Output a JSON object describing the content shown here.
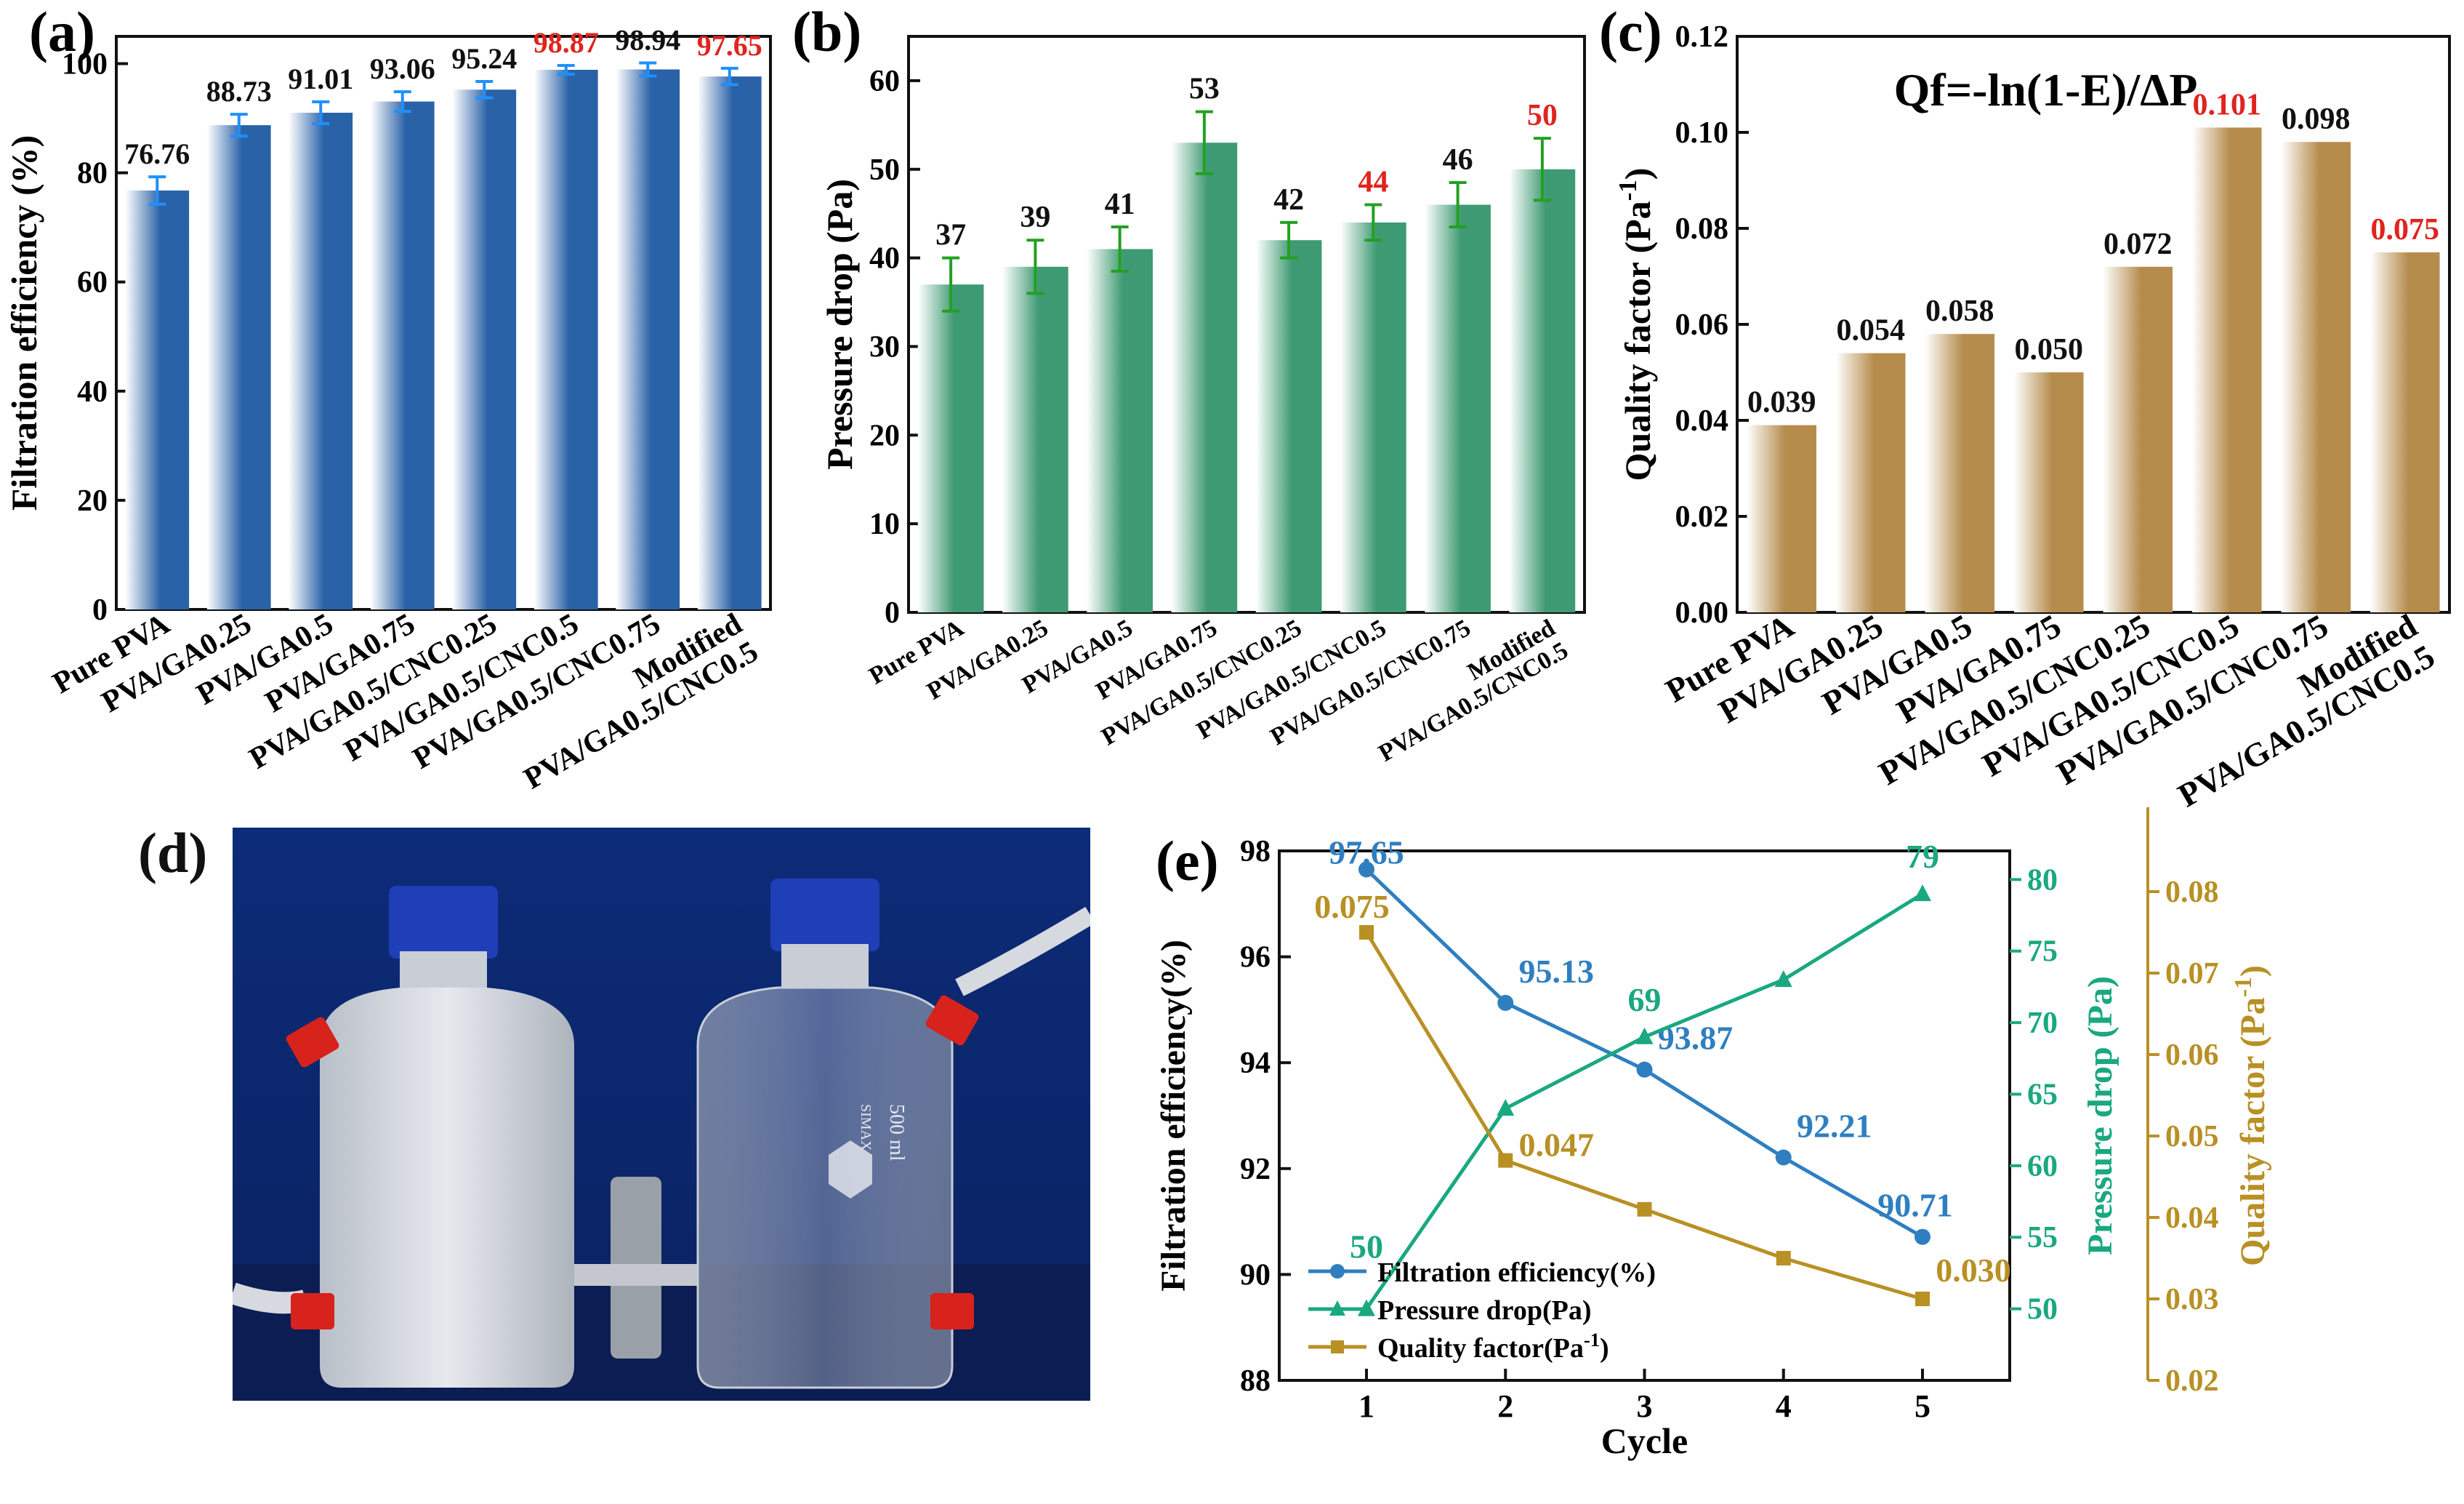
{
  "colors": {
    "blue": "#2a62a8",
    "green": "#3e9a72",
    "gold": "#b58c4c",
    "red": "#e0241e",
    "err_blue": "#1e90ff",
    "err_green": "#22a022",
    "line_blue": "#2f7fc0",
    "line_green": "#1aa880",
    "line_gold": "#b89024"
  },
  "panel_labels": {
    "a": "(a)",
    "b": "(b)",
    "c": "(c)",
    "d": "(d)",
    "e": "(e)"
  },
  "chart_data": [
    {
      "id": "a",
      "type": "bar",
      "ylabel": "Filtration efficiency (%)",
      "ylim": [
        0,
        105
      ],
      "yticks": [
        0,
        20,
        40,
        60,
        80,
        100
      ],
      "categories": [
        "Pure PVA",
        "PVA/GA0.25",
        "PVA/GA0.5",
        "PVA/GA0.75",
        "PVA/GA0.5/CNC0.25",
        "PVA/GA0.5/CNC0.5",
        "PVA/GA0.5/CNC0.75",
        "Modified\nPVA/GA0.5/CNC0.5"
      ],
      "values": [
        76.76,
        88.73,
        91.01,
        93.06,
        95.24,
        98.87,
        98.94,
        97.65
      ],
      "errors": [
        2.5,
        2.0,
        2.0,
        1.8,
        1.5,
        0.8,
        1.2,
        1.5
      ],
      "value_labels": [
        "76.76",
        "88.73",
        "91.01",
        "93.06",
        "95.24",
        "98.87",
        "98.94",
        "97.65"
      ],
      "highlight": [
        false,
        false,
        false,
        false,
        false,
        true,
        false,
        true
      ]
    },
    {
      "id": "b",
      "type": "bar",
      "ylabel": "Pressure drop (Pa)",
      "ylim": [
        0,
        65
      ],
      "yticks": [
        0,
        10,
        20,
        30,
        40,
        50,
        60
      ],
      "categories": [
        "Pure PVA",
        "PVA/GA0.25",
        "PVA/GA0.5",
        "PVA/GA0.75",
        "PVA/GA0.5/CNC0.25",
        "PVA/GA0.5/CNC0.5",
        "PVA/GA0.5/CNC0.75",
        "Modified\nPVA/GA0.5/CNC0.5"
      ],
      "values": [
        37,
        39,
        41,
        53,
        42,
        44,
        46,
        50
      ],
      "errors": [
        3,
        3,
        2.5,
        3.5,
        2,
        2,
        2.5,
        3.5
      ],
      "value_labels": [
        "37",
        "39",
        "41",
        "53",
        "42",
        "44",
        "46",
        "50"
      ],
      "highlight": [
        false,
        false,
        false,
        false,
        false,
        true,
        false,
        true
      ]
    },
    {
      "id": "c",
      "type": "bar",
      "ylabel": "Quality factor (Pa-1)",
      "ylim": [
        0,
        0.12
      ],
      "yticks": [
        "0.00",
        "0.02",
        "0.04",
        "0.06",
        "0.08",
        "0.10",
        "0.12"
      ],
      "annotation": "Qf=-ln(1-E)/ΔP",
      "categories": [
        "Pure PVA",
        "PVA/GA0.25",
        "PVA/GA0.5",
        "PVA/GA0.75",
        "PVA/GA0.5/CNC0.25",
        "PVA/GA0.5/CNC0.5",
        "PVA/GA0.5/CNC0.75",
        "Modified\nPVA/GA0.5/CNC0.5"
      ],
      "values": [
        0.039,
        0.054,
        0.058,
        0.05,
        0.072,
        0.101,
        0.098,
        0.075
      ],
      "value_labels": [
        "0.039",
        "0.054",
        "0.058",
        "0.050",
        "0.072",
        "0.101",
        "0.098",
        "0.075"
      ],
      "highlight": [
        false,
        false,
        false,
        false,
        false,
        true,
        false,
        true
      ]
    },
    {
      "id": "e",
      "type": "line",
      "xlabel": "Cycle",
      "x": [
        1,
        2,
        3,
        4,
        5
      ],
      "xticks": [
        "1",
        "2",
        "3",
        "4",
        "5"
      ],
      "axes": {
        "left": {
          "label": "Filtration efficiency(%)",
          "ylim": [
            88,
            98
          ],
          "ticks": [
            "88",
            "90",
            "92",
            "94",
            "96",
            "98"
          ]
        },
        "right1": {
          "label": "Pressure drop (Pa)",
          "ylim": [
            45,
            82
          ],
          "ticks": [
            "50",
            "55",
            "60",
            "65",
            "70",
            "75",
            "80"
          ]
        },
        "right2": {
          "label": "Quality factor (Pa-1)",
          "ylim": [
            0.02,
            0.085
          ],
          "ticks": [
            "0.02",
            "0.03",
            "0.04",
            "0.05",
            "0.06",
            "0.07",
            "0.08"
          ]
        }
      },
      "series": [
        {
          "name": "Filtration efficiency(%)",
          "axis": "left",
          "marker": "circle",
          "values": [
            97.65,
            95.13,
            93.87,
            92.21,
            90.71
          ],
          "labels": [
            "97.65",
            "95.13",
            "93.87",
            "92.21",
            "90.71"
          ]
        },
        {
          "name": "Pressure drop(Pa)",
          "axis": "right1",
          "marker": "triangle",
          "values": [
            50,
            64,
            69,
            73,
            79
          ],
          "labels": [
            "50",
            "",
            "69",
            "",
            "79"
          ]
        },
        {
          "name": "Quality factor(Pa-1)",
          "axis": "right2",
          "marker": "square",
          "values": [
            0.075,
            0.047,
            0.041,
            0.035,
            0.03
          ],
          "labels": [
            "0.075",
            "0.047",
            "",
            "",
            "0.030"
          ]
        }
      ],
      "legend_position": "bottom-left"
    }
  ],
  "photo": {
    "bottle_mark": "500 ml",
    "bottle_brand": "SIMAX"
  }
}
